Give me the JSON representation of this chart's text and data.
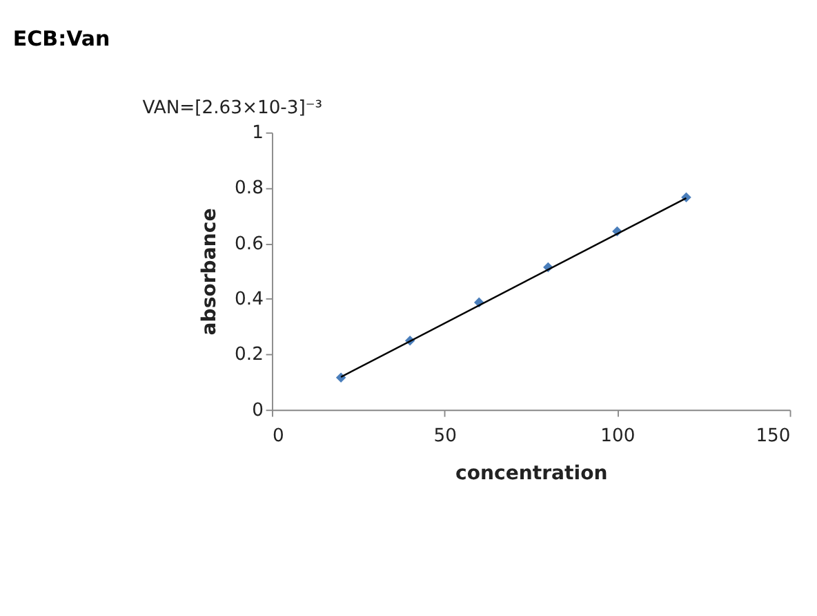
{
  "chart_data": {
    "type": "scatter",
    "title": "ECB:Van",
    "xlabel": "concentration",
    "ylabel": "absorbance",
    "annotations": [
      "VAN=[2.63×10-3]⁻³"
    ],
    "xlim": [
      0,
      150
    ],
    "xticks": [
      0,
      50,
      100,
      150
    ],
    "ylim": [
      0,
      1
    ],
    "yticks": [
      0,
      0.2,
      0.4,
      0.6,
      0.8,
      1
    ],
    "grid": false,
    "series": [
      {
        "color": "#4a7ebb",
        "marker": "diamond",
        "x": [
          20,
          40,
          60,
          80,
          100,
          120
        ],
        "values": [
          0.116,
          0.249,
          0.387,
          0.514,
          0.643,
          0.766
        ]
      },
      {
        "type": "line",
        "color": "#000000",
        "marker": "none",
        "line_style": "solid",
        "x": [
          20,
          120
        ],
        "values": [
          0.118,
          0.763
        ]
      }
    ]
  }
}
